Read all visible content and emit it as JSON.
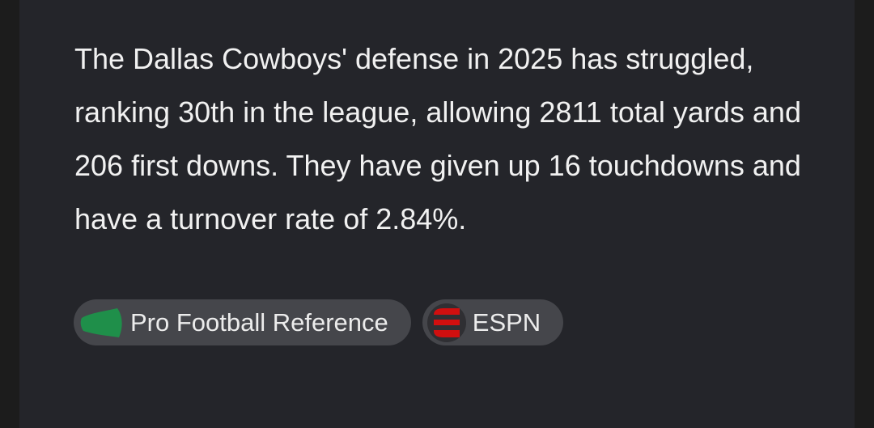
{
  "answer": {
    "text": "The Dallas Cowboys' defense in 2025 has struggled, ranking 30th in the league, allowing 2811 total yards and 206 first downs. They have given up 16 touchdowns and have a turnover rate of 2.84%."
  },
  "sources": [
    {
      "label": "Pro Football Reference",
      "icon": "pfr-leaf-logo",
      "color": "#1f8f4a"
    },
    {
      "label": "ESPN",
      "icon": "espn-e-logo",
      "color": "#d10f0f"
    }
  ]
}
